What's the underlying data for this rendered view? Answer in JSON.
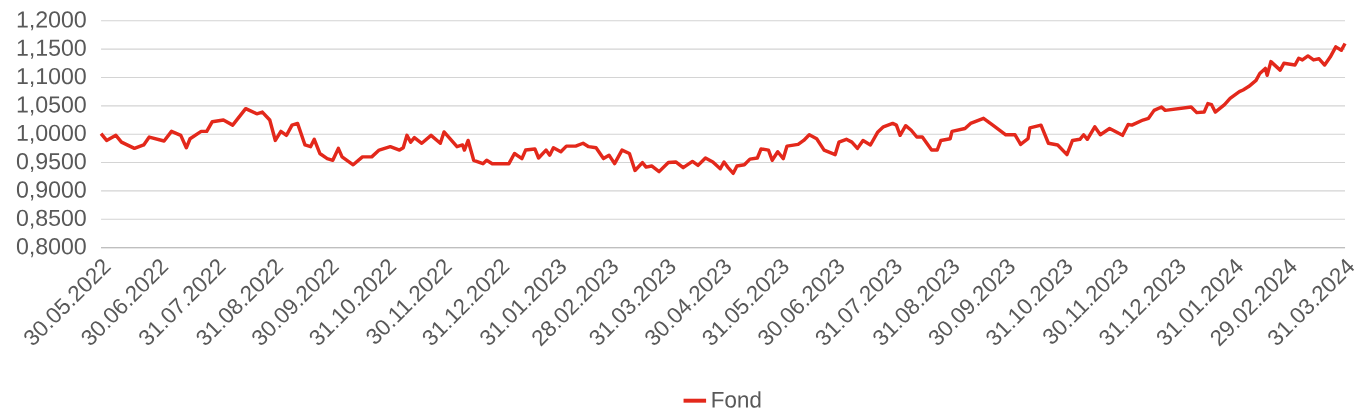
{
  "chart_data": {
    "type": "line",
    "x": [
      "2022-05-30",
      "2022-06-02",
      "2022-06-07",
      "2022-06-10",
      "2022-06-17",
      "2022-06-22",
      "2022-06-25",
      "2022-07-03",
      "2022-07-07",
      "2022-07-12",
      "2022-07-15",
      "2022-07-17",
      "2022-07-23",
      "2022-07-26",
      "2022-07-29",
      "2022-08-04",
      "2022-08-09",
      "2022-08-16",
      "2022-08-22",
      "2022-08-25",
      "2022-08-29",
      "2022-09-01",
      "2022-09-04",
      "2022-09-07",
      "2022-09-10",
      "2022-09-13",
      "2022-09-17",
      "2022-09-20",
      "2022-09-22",
      "2022-09-25",
      "2022-09-29",
      "2022-10-02",
      "2022-10-05",
      "2022-10-07",
      "2022-10-13",
      "2022-10-18",
      "2022-10-23",
      "2022-10-27",
      "2022-11-02",
      "2022-11-07",
      "2022-11-09",
      "2022-11-11",
      "2022-11-13",
      "2022-11-15",
      "2022-11-19",
      "2022-11-24",
      "2022-11-29",
      "2022-12-01",
      "2022-12-08",
      "2022-12-11",
      "2022-12-12",
      "2022-12-14",
      "2022-12-17",
      "2022-12-22",
      "2022-12-24",
      "2022-12-27",
      "2023-01-05",
      "2023-01-08",
      "2023-01-12",
      "2023-01-14",
      "2023-01-19",
      "2023-01-21",
      "2023-01-25",
      "2023-01-27",
      "2023-01-29",
      "2023-02-02",
      "2023-02-05",
      "2023-02-10",
      "2023-02-14",
      "2023-02-17",
      "2023-02-21",
      "2023-02-25",
      "2023-02-28",
      "2023-03-03",
      "2023-03-07",
      "2023-03-11",
      "2023-03-14",
      "2023-03-18",
      "2023-03-20",
      "2023-03-23",
      "2023-03-27",
      "2023-04-01",
      "2023-04-05",
      "2023-04-09",
      "2023-04-14",
      "2023-04-17",
      "2023-04-21",
      "2023-04-25",
      "2023-04-29",
      "2023-05-01",
      "2023-05-03",
      "2023-05-06",
      "2023-05-08",
      "2023-05-12",
      "2023-05-15",
      "2023-05-19",
      "2023-05-21",
      "2023-05-25",
      "2023-05-27",
      "2023-05-30",
      "2023-06-02",
      "2023-06-04",
      "2023-06-10",
      "2023-06-13",
      "2023-06-16",
      "2023-06-20",
      "2023-06-24",
      "2023-06-30",
      "2023-07-02",
      "2023-07-06",
      "2023-07-09",
      "2023-07-12",
      "2023-07-15",
      "2023-07-19",
      "2023-07-23",
      "2023-07-26",
      "2023-07-31",
      "2023-08-02",
      "2023-08-04",
      "2023-08-07",
      "2023-08-10",
      "2023-08-13",
      "2023-08-16",
      "2023-08-21",
      "2023-08-24",
      "2023-08-26",
      "2023-08-31",
      "2023-09-01",
      "2023-09-08",
      "2023-09-11",
      "2023-09-18",
      "2023-09-23",
      "2023-09-30",
      "2023-10-05",
      "2023-10-08",
      "2023-10-12",
      "2023-10-13",
      "2023-10-19",
      "2023-10-23",
      "2023-10-28",
      "2023-11-02",
      "2023-11-05",
      "2023-11-09",
      "2023-11-11",
      "2023-11-13",
      "2023-11-17",
      "2023-11-20",
      "2023-11-25",
      "2023-12-02",
      "2023-12-05",
      "2023-12-07",
      "2023-12-13",
      "2023-12-16",
      "2023-12-19",
      "2023-12-23",
      "2023-12-25",
      "2024-01-08",
      "2024-01-11",
      "2024-01-15",
      "2024-01-17",
      "2024-01-19",
      "2024-01-21",
      "2024-01-26",
      "2024-01-29",
      "2024-02-03",
      "2024-02-05",
      "2024-02-08",
      "2024-02-12",
      "2024-02-14",
      "2024-02-17",
      "2024-02-18",
      "2024-02-20",
      "2024-02-25",
      "2024-02-27",
      "2024-03-04",
      "2024-03-06",
      "2024-03-08",
      "2024-03-11",
      "2024-03-14",
      "2024-03-17",
      "2024-03-20",
      "2024-03-23",
      "2024-03-26",
      "2024-03-29",
      "2024-03-31"
    ],
    "series": [
      {
        "name": "Fond",
        "color": "#e3281b",
        "values": [
          1.001,
          0.989,
          0.998,
          0.986,
          0.975,
          0.981,
          0.995,
          0.988,
          1.005,
          0.998,
          0.976,
          0.992,
          1.005,
          1.005,
          1.022,
          1.025,
          1.016,
          1.045,
          1.036,
          1.039,
          1.025,
          0.989,
          1.005,
          0.998,
          1.016,
          1.019,
          0.981,
          0.978,
          0.991,
          0.966,
          0.957,
          0.954,
          0.975,
          0.96,
          0.946,
          0.96,
          0.96,
          0.972,
          0.978,
          0.972,
          0.976,
          0.998,
          0.986,
          0.994,
          0.984,
          0.998,
          0.984,
          1.004,
          0.978,
          0.981,
          0.972,
          0.989,
          0.954,
          0.948,
          0.954,
          0.948,
          0.948,
          0.966,
          0.957,
          0.972,
          0.974,
          0.958,
          0.972,
          0.963,
          0.976,
          0.969,
          0.979,
          0.979,
          0.984,
          0.978,
          0.976,
          0.957,
          0.963,
          0.948,
          0.972,
          0.966,
          0.936,
          0.95,
          0.942,
          0.944,
          0.934,
          0.95,
          0.951,
          0.941,
          0.952,
          0.945,
          0.958,
          0.951,
          0.939,
          0.951,
          0.942,
          0.931,
          0.944,
          0.946,
          0.956,
          0.958,
          0.974,
          0.972,
          0.954,
          0.969,
          0.957,
          0.979,
          0.982,
          0.989,
          0.999,
          0.992,
          0.972,
          0.964,
          0.986,
          0.991,
          0.986,
          0.975,
          0.989,
          0.981,
          1.004,
          1.013,
          1.019,
          1.016,
          0.998,
          1.015,
          1.007,
          0.995,
          0.995,
          0.972,
          0.972,
          0.989,
          0.992,
          1.005,
          1.01,
          1.019,
          1.028,
          1.016,
          0.999,
          0.999,
          0.982,
          0.992,
          1.011,
          1.016,
          0.984,
          0.981,
          0.964,
          0.989,
          0.991,
          0.999,
          0.991,
          1.013,
          0.999,
          1.01,
          0.998,
          1.017,
          1.016,
          1.025,
          1.028,
          1.042,
          1.048,
          1.042,
          1.048,
          1.038,
          1.039,
          1.054,
          1.052,
          1.039,
          1.052,
          1.063,
          1.075,
          1.078,
          1.084,
          1.095,
          1.107,
          1.116,
          1.104,
          1.128,
          1.113,
          1.125,
          1.122,
          1.134,
          1.131,
          1.138,
          1.131,
          1.133,
          1.122,
          1.136,
          1.154,
          1.148,
          1.16
        ]
      }
    ],
    "xlim": [
      "2022-05-30",
      "2024-03-31"
    ],
    "xticks": [
      {
        "value": "2022-05-30",
        "label": "30.05.2022"
      },
      {
        "value": "2022-06-30",
        "label": "30.06.2022"
      },
      {
        "value": "2022-07-31",
        "label": "31.07.2022"
      },
      {
        "value": "2022-08-31",
        "label": "31.08.2022"
      },
      {
        "value": "2022-09-30",
        "label": "30.09.2022"
      },
      {
        "value": "2022-10-31",
        "label": "31.10.2022"
      },
      {
        "value": "2022-11-30",
        "label": "30.11.2022"
      },
      {
        "value": "2022-12-31",
        "label": "31.12.2022"
      },
      {
        "value": "2023-01-31",
        "label": "31.01.2023"
      },
      {
        "value": "2023-02-28",
        "label": "28.02.2023"
      },
      {
        "value": "2023-03-31",
        "label": "31.03.2023"
      },
      {
        "value": "2023-04-30",
        "label": "30.04.2023"
      },
      {
        "value": "2023-05-31",
        "label": "31.05.2023"
      },
      {
        "value": "2023-06-30",
        "label": "30.06.2023"
      },
      {
        "value": "2023-07-31",
        "label": "31.07.2023"
      },
      {
        "value": "2023-08-31",
        "label": "31.08.2023"
      },
      {
        "value": "2023-09-30",
        "label": "30.09.2023"
      },
      {
        "value": "2023-10-31",
        "label": "31.10.2023"
      },
      {
        "value": "2023-11-30",
        "label": "30.11.2023"
      },
      {
        "value": "2023-12-31",
        "label": "31.12.2023"
      },
      {
        "value": "2024-01-31",
        "label": "31.01.2024"
      },
      {
        "value": "2024-02-29",
        "label": "29.02.2024"
      },
      {
        "value": "2024-03-31",
        "label": "31.03.2024"
      }
    ],
    "ylim": [
      0.8,
      1.2
    ],
    "yticks": [
      {
        "value": 0.8,
        "label": "0,8000"
      },
      {
        "value": 0.85,
        "label": "0,8500"
      },
      {
        "value": 0.9,
        "label": "0,9000"
      },
      {
        "value": 0.95,
        "label": "0,9500"
      },
      {
        "value": 1.0,
        "label": "1,0000"
      },
      {
        "value": 1.05,
        "label": "1,0500"
      },
      {
        "value": 1.1,
        "label": "1,1000"
      },
      {
        "value": 1.15,
        "label": "1,1500"
      },
      {
        "value": 1.2,
        "label": "1,2000"
      }
    ],
    "grid": "y",
    "legend": "bottom",
    "line_style": "solid"
  }
}
